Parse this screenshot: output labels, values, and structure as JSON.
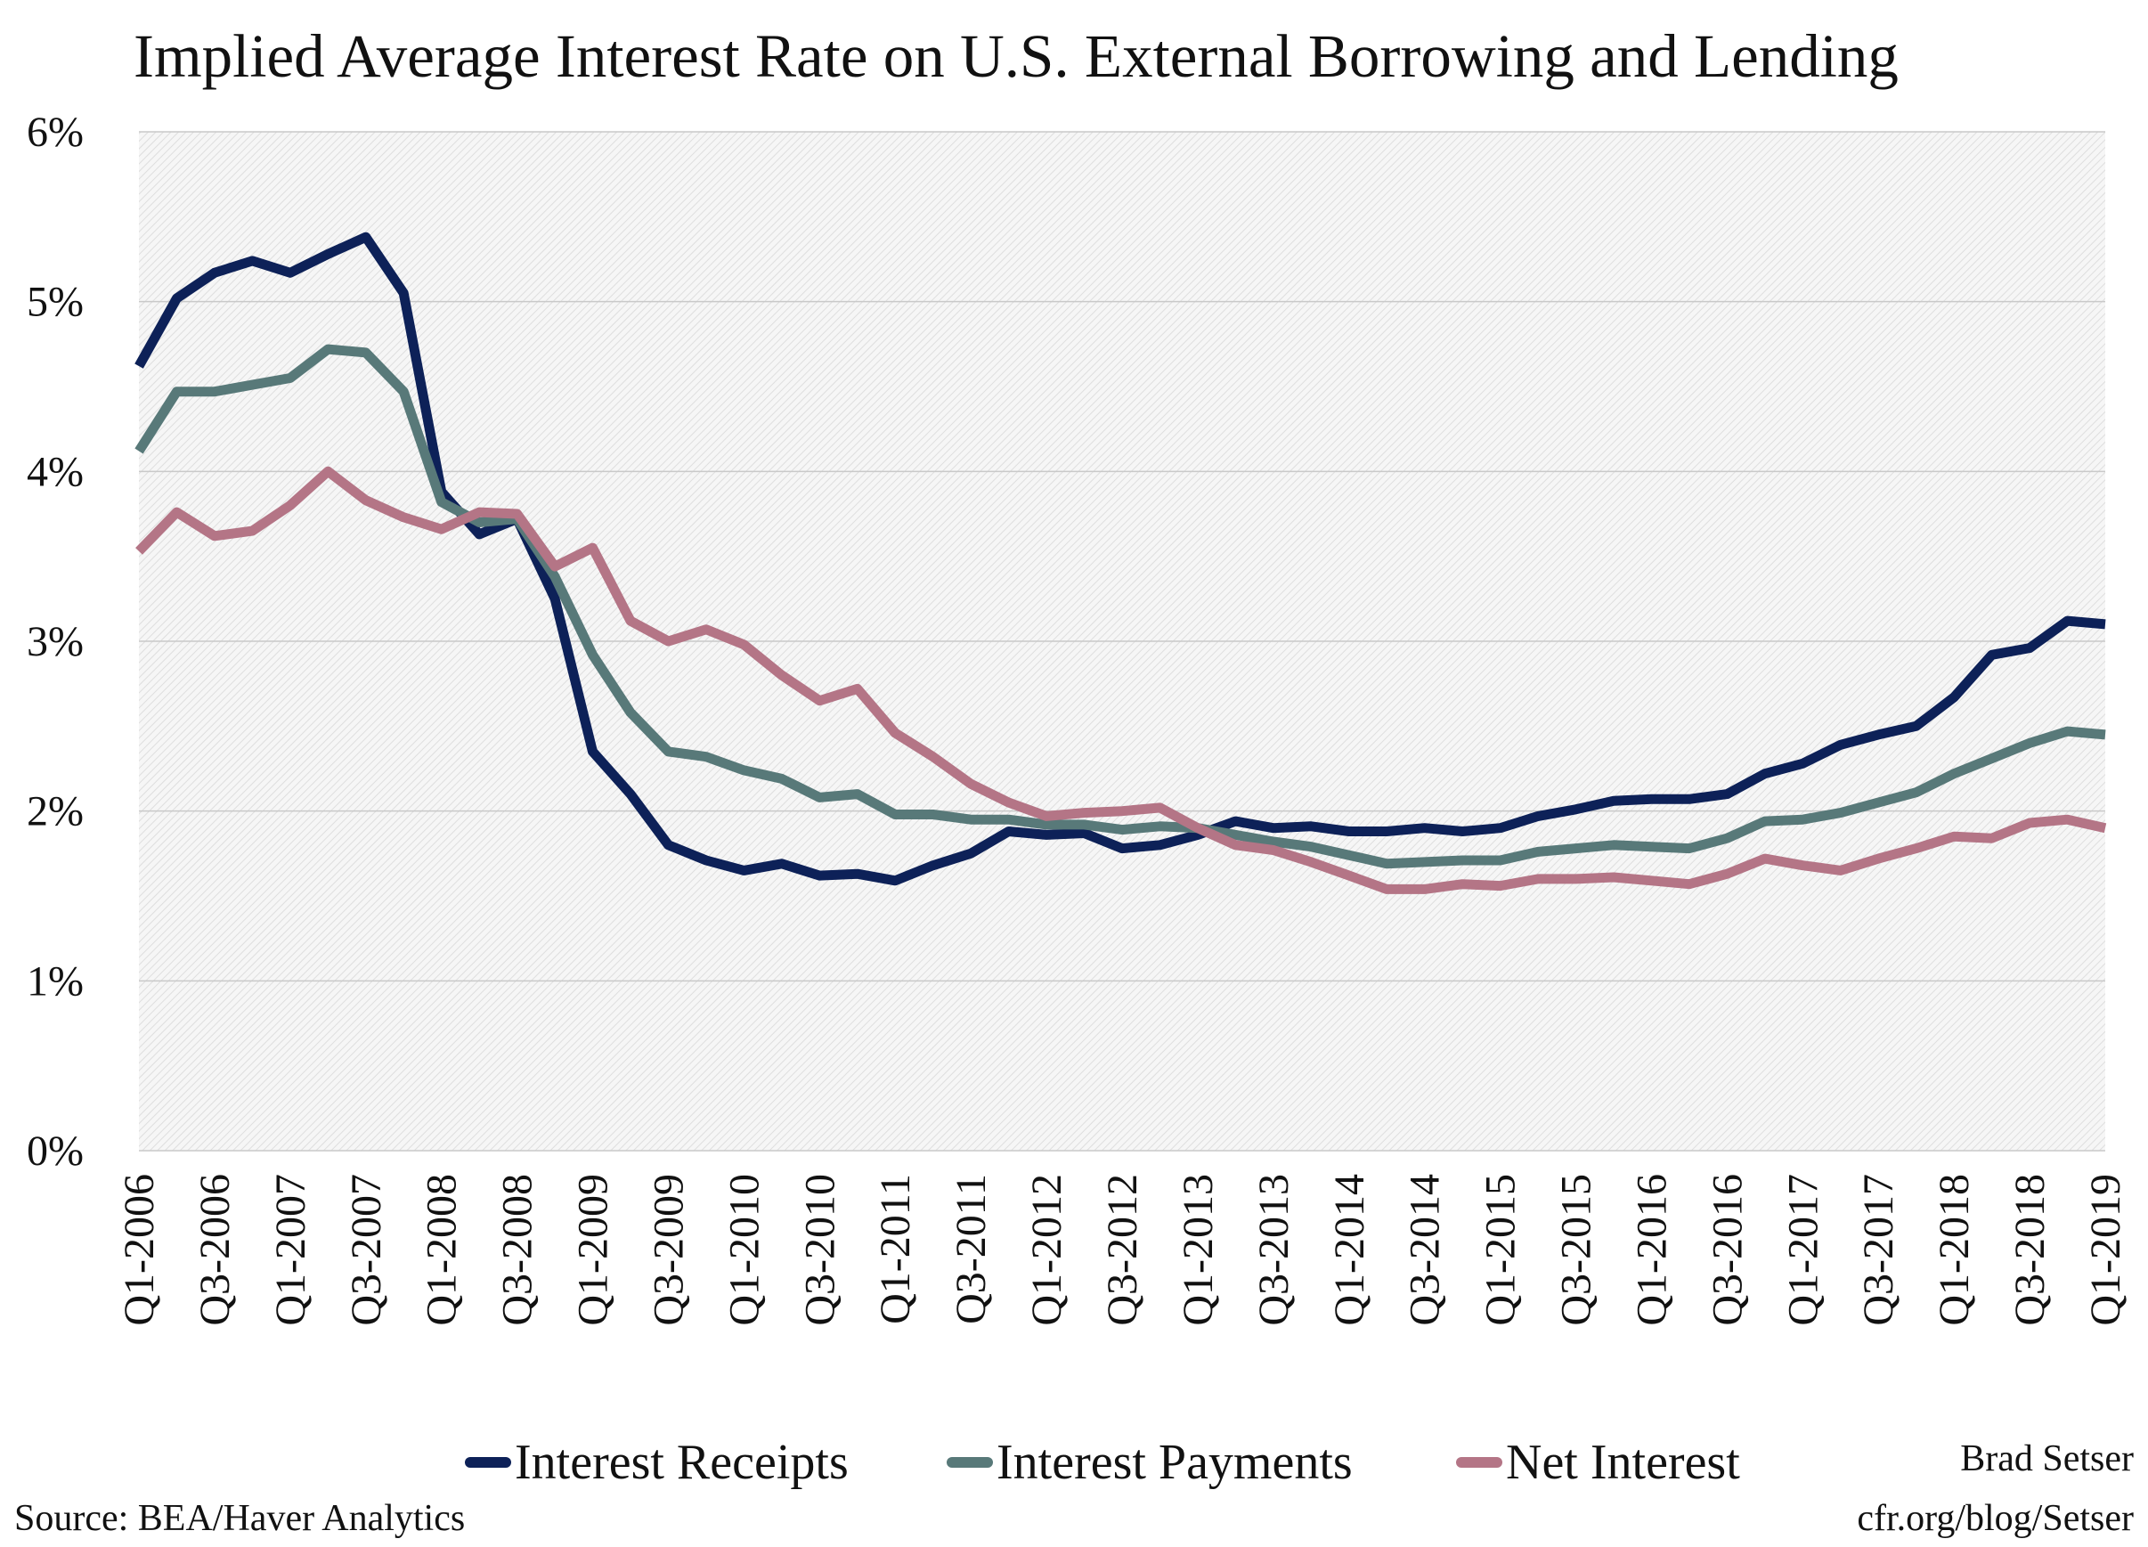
{
  "chart_data": {
    "type": "line",
    "title": "Implied Average Interest Rate on U.S. External Borrowing and Lending",
    "xlabel": "",
    "ylabel": "",
    "ylim": [
      0,
      6
    ],
    "y_ticks": [
      "0%",
      "1%",
      "2%",
      "3%",
      "4%",
      "5%",
      "6%"
    ],
    "x_tick_labels": [
      "Q1-2006",
      "Q3-2006",
      "Q1-2007",
      "Q3-2007",
      "Q1-2008",
      "Q3-2008",
      "Q1-2009",
      "Q3-2009",
      "Q1-2010",
      "Q3-2010",
      "Q1-2011",
      "Q3-2011",
      "Q1-2012",
      "Q3-2012",
      "Q1-2013",
      "Q3-2013",
      "Q1-2014",
      "Q3-2014",
      "Q1-2015",
      "Q3-2015",
      "Q1-2016",
      "Q3-2016",
      "Q1-2017",
      "Q3-2017",
      "Q1-2018",
      "Q3-2018",
      "Q1-2019"
    ],
    "grid": true,
    "legend_position": "bottom",
    "series": [
      {
        "name": "Interest Receipts",
        "color": "#0d2158",
        "values": [
          4.62,
          5.02,
          5.17,
          5.24,
          5.17,
          5.28,
          5.38,
          5.05,
          3.88,
          3.63,
          3.72,
          3.25,
          2.35,
          2.1,
          1.8,
          1.71,
          1.65,
          1.69,
          1.62,
          1.63,
          1.59,
          1.68,
          1.75,
          1.88,
          1.86,
          1.87,
          1.78,
          1.8,
          1.86,
          1.94,
          1.9,
          1.91,
          1.88,
          1.88,
          1.9,
          1.88,
          1.9,
          1.97,
          2.01,
          2.06,
          2.07,
          2.07,
          2.1,
          2.22,
          2.28,
          2.39,
          2.45,
          2.5,
          2.67,
          2.92,
          2.96,
          3.12,
          3.1
        ]
      },
      {
        "name": "Interest Payments",
        "color": "#587979",
        "values": [
          4.12,
          4.47,
          4.47,
          4.51,
          4.55,
          4.72,
          4.7,
          4.47,
          3.82,
          3.7,
          3.72,
          3.38,
          2.92,
          2.58,
          2.35,
          2.32,
          2.24,
          2.19,
          2.08,
          2.1,
          1.98,
          1.98,
          1.95,
          1.95,
          1.92,
          1.92,
          1.89,
          1.91,
          1.9,
          1.86,
          1.82,
          1.79,
          1.74,
          1.69,
          1.7,
          1.71,
          1.71,
          1.76,
          1.78,
          1.8,
          1.79,
          1.78,
          1.84,
          1.94,
          1.95,
          1.99,
          2.05,
          2.11,
          2.22,
          2.31,
          2.4,
          2.47,
          2.45
        ]
      },
      {
        "name": "Net Interest",
        "color": "#b47586",
        "values": [
          3.53,
          3.76,
          3.62,
          3.65,
          3.8,
          4.0,
          3.83,
          3.73,
          3.66,
          3.76,
          3.75,
          3.44,
          3.55,
          3.12,
          3.0,
          3.07,
          2.98,
          2.8,
          2.65,
          2.72,
          2.46,
          2.32,
          2.16,
          2.05,
          1.97,
          1.99,
          2.0,
          2.02,
          1.9,
          1.8,
          1.77,
          1.7,
          1.62,
          1.54,
          1.54,
          1.57,
          1.56,
          1.6,
          1.6,
          1.61,
          1.59,
          1.57,
          1.63,
          1.72,
          1.68,
          1.65,
          1.72,
          1.78,
          1.85,
          1.84,
          1.93,
          1.95,
          1.9
        ]
      }
    ]
  },
  "source_text": "Source: BEA/Haver Analytics",
  "credit": {
    "name": "Brad Setser",
    "url": "cfr.org/blog/Setser"
  }
}
